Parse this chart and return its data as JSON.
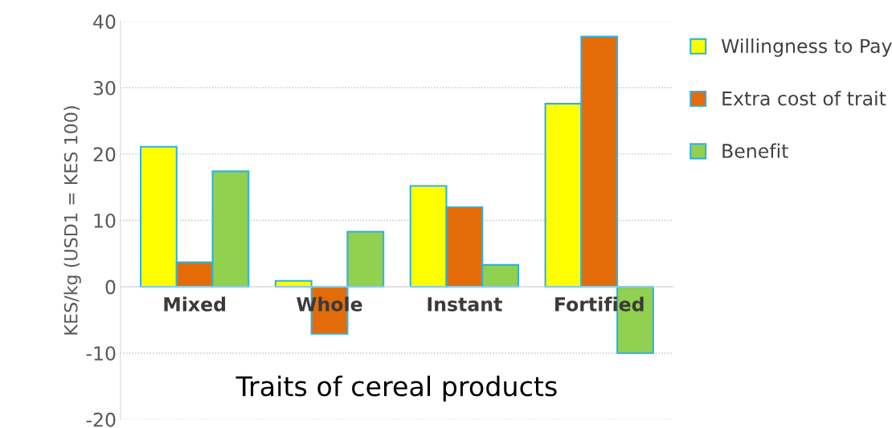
{
  "chart_data": {
    "type": "bar",
    "xlabel": "Traits of cereal products",
    "ylabel": "KES/kg (USD1 = KES 100)",
    "categories": [
      "Mixed",
      "Whole",
      "Instant",
      "Fortified"
    ],
    "series": [
      {
        "name": "Willingness to Pay",
        "color": "#ffff00",
        "values": [
          21.1,
          0.9,
          15.2,
          27.6
        ]
      },
      {
        "name": "Extra cost of trait",
        "color": "#e36c09",
        "values": [
          3.7,
          -7.1,
          12.0,
          37.7
        ]
      },
      {
        "name": "Benefit",
        "color": "#92d050",
        "values": [
          17.4,
          8.3,
          3.3,
          -10
        ]
      }
    ],
    "ylim": [
      -20,
      40
    ],
    "yticks": [
      -20,
      -10,
      0,
      10,
      20,
      30,
      40
    ],
    "grid": "y",
    "legend": "top right"
  }
}
